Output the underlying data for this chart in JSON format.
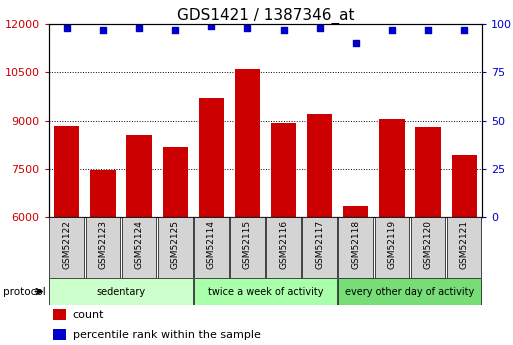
{
  "title": "GDS1421 / 1387346_at",
  "samples": [
    "GSM52122",
    "GSM52123",
    "GSM52124",
    "GSM52125",
    "GSM52114",
    "GSM52115",
    "GSM52116",
    "GSM52117",
    "GSM52118",
    "GSM52119",
    "GSM52120",
    "GSM52121"
  ],
  "counts": [
    8850,
    7480,
    8550,
    8200,
    9700,
    10600,
    8920,
    9200,
    6350,
    9050,
    8820,
    7950
  ],
  "percentile_ranks": [
    98,
    97,
    98,
    97,
    99,
    98,
    97,
    98,
    90,
    97,
    97,
    97
  ],
  "ylim_left": [
    6000,
    12000
  ],
  "ylim_right": [
    0,
    100
  ],
  "yticks_left": [
    6000,
    7500,
    9000,
    10500,
    12000
  ],
  "yticks_right": [
    0,
    25,
    50,
    75,
    100
  ],
  "bar_color": "#cc0000",
  "dot_color": "#0000cc",
  "bar_bottom": 6000,
  "groups": [
    {
      "label": "sedentary",
      "start": 0,
      "end": 4,
      "color": "#ccffcc"
    },
    {
      "label": "twice a week of activity",
      "start": 4,
      "end": 8,
      "color": "#aaffaa"
    },
    {
      "label": "every other day of activity",
      "start": 8,
      "end": 12,
      "color": "#77dd77"
    }
  ],
  "protocol_label": "protocol",
  "legend_count_label": "count",
  "legend_percentile_label": "percentile rank within the sample",
  "grid_color": "#000000",
  "tick_label_color_left": "#cc0000",
  "tick_label_color_right": "#0000cc",
  "title_fontsize": 11,
  "tick_fontsize": 8,
  "sample_box_color": "#d4d4d4",
  "bg_color": "#ffffff"
}
